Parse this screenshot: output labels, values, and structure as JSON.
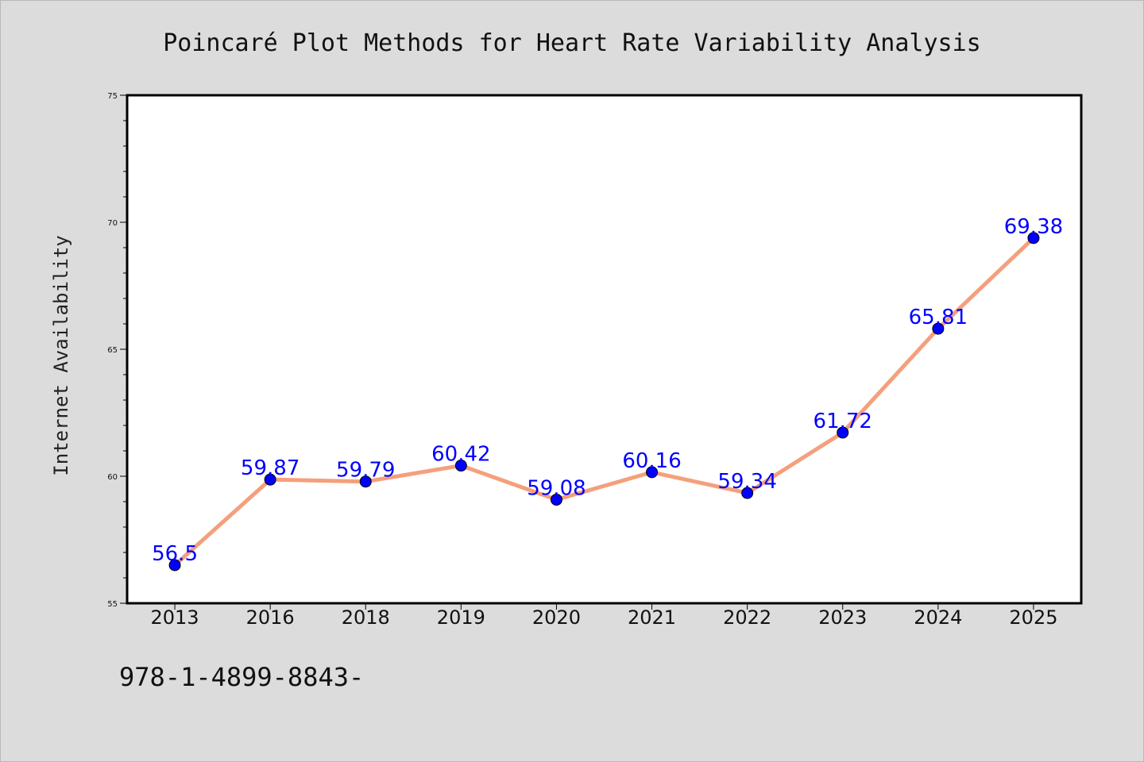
{
  "chart_data": {
    "type": "line",
    "title": "Poincaré Plot Methods for Heart Rate Variability Analysis",
    "xlabel": "",
    "ylabel": "Internet Availability",
    "categories": [
      "2013",
      "2016",
      "2018",
      "2019",
      "2020",
      "2021",
      "2022",
      "2023",
      "2024",
      "2025"
    ],
    "values": [
      56.5,
      59.87,
      59.79,
      60.42,
      59.08,
      60.16,
      59.34,
      61.72,
      65.81,
      69.38
    ],
    "data_labels": [
      "56.5",
      "59.87",
      "59.79",
      "60.42",
      "59.08",
      "60.16",
      "59.34",
      "61.72",
      "65.81",
      "69.38"
    ],
    "ylim": [
      55,
      75
    ],
    "yticks": [
      55,
      60,
      65,
      70,
      75
    ],
    "grid": false,
    "legend": "none",
    "colors": {
      "line": "#f4a07c",
      "marker": "#0000ff",
      "label": "#0000ff",
      "background": "#dcdcdc",
      "plot_bg": "#ffffff"
    }
  },
  "footnote": "978-1-4899-8843-"
}
